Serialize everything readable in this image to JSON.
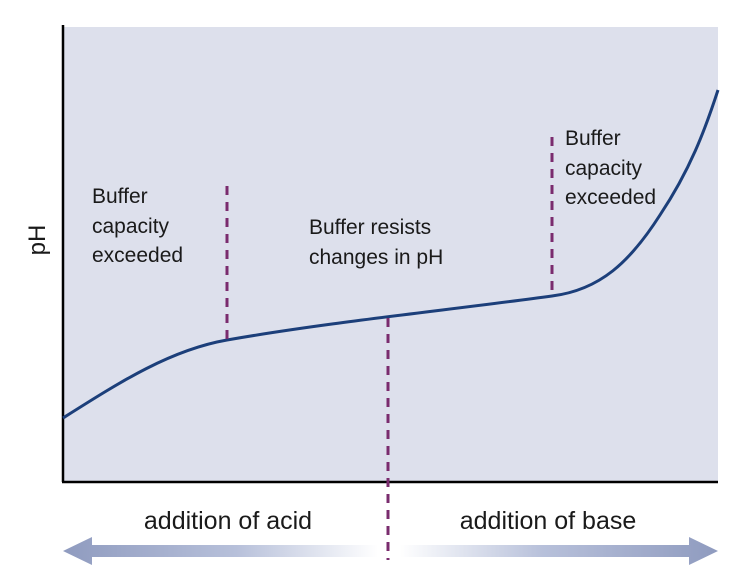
{
  "y_axis_label": "pH",
  "annotations": {
    "left": [
      "Buffer",
      "capacity",
      "exceeded"
    ],
    "middle": [
      "Buffer resists",
      "changes in pH"
    ],
    "right": [
      "Buffer",
      "capacity",
      "exceeded"
    ]
  },
  "arrows": {
    "left_label": "addition of acid",
    "right_label": "addition of base"
  },
  "colors": {
    "plot_bg": "#dde0ec",
    "curve": "#1c3f7a",
    "dashed_marker": "#7a2c6e",
    "arrow": "#8f9bbf",
    "axis": "#000000"
  }
}
